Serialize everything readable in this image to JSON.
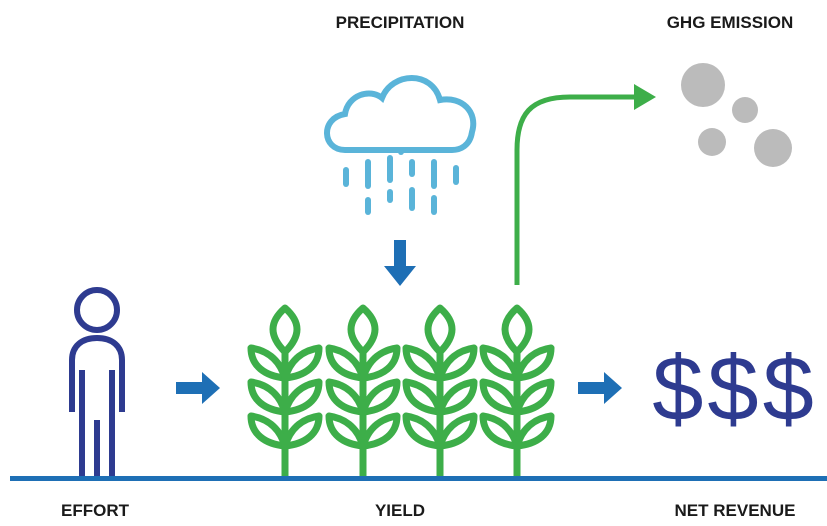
{
  "labels": {
    "precipitation": "PRECIPITATION",
    "ghg_emission": "GHG EMISSION",
    "effort": "EFFORT",
    "yield": "YIELD",
    "net_revenue": "NET REVENUE"
  },
  "revenue_symbol": "$$$"
}
